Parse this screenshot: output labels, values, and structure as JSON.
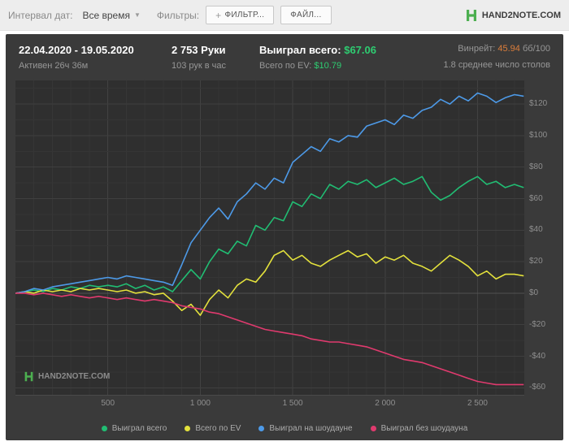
{
  "toolbar": {
    "date_interval_label": "Интервал дат:",
    "date_interval_value": "Все время",
    "filters_label": "Фильтры:",
    "add_filter_button": "ФИЛЬТР...",
    "file_button": "ФАЙЛ...",
    "brand": "HAND2NOTE.COM"
  },
  "header": {
    "date_range": "22.04.2020 - 19.05.2020",
    "active_time": "Активен 26ч 36м",
    "hands": "2 753 Руки",
    "hands_per_hour": "103 рук в час",
    "won_total_label": "Выиграл всего:",
    "won_total_value": "$67.06",
    "ev_label": "Всего по EV:",
    "ev_value": "$10.79",
    "winrate_label": "Винрейт:",
    "winrate_value": "45.94",
    "winrate_unit": "бб/100",
    "avg_tables": "1.8 среднее число столов"
  },
  "watermark": "HAND2NOTE.COM",
  "colors": {
    "accent": "#4caf50",
    "positive": "#2ecc71",
    "winrate": "#dd7e3b"
  },
  "chart_data": {
    "type": "line",
    "title": "",
    "xlabel": "",
    "ylabel": "",
    "grid": true,
    "legend_position": "bottom",
    "xlim": [
      0,
      2753
    ],
    "ylim": [
      -65,
      135
    ],
    "x_ticks": [
      {
        "v": 500,
        "label": "500"
      },
      {
        "v": 1000,
        "label": "1 000"
      },
      {
        "v": 1500,
        "label": "1 500"
      },
      {
        "v": 2000,
        "label": "2 000"
      },
      {
        "v": 2500,
        "label": "2 500"
      }
    ],
    "y_ticks": [
      {
        "v": 120,
        "label": "$120"
      },
      {
        "v": 100,
        "label": "$100"
      },
      {
        "v": 80,
        "label": "$80"
      },
      {
        "v": 60,
        "label": "$60"
      },
      {
        "v": 40,
        "label": "$40"
      },
      {
        "v": 20,
        "label": "$20"
      },
      {
        "v": 0,
        "label": "$0"
      },
      {
        "v": -20,
        "label": "-$20"
      },
      {
        "v": -40,
        "label": "-$40"
      },
      {
        "v": -60,
        "label": "-$60"
      }
    ],
    "x": [
      0,
      50,
      100,
      150,
      200,
      250,
      300,
      350,
      400,
      450,
      500,
      550,
      600,
      650,
      700,
      750,
      800,
      850,
      900,
      950,
      1000,
      1050,
      1100,
      1150,
      1200,
      1250,
      1300,
      1350,
      1400,
      1450,
      1500,
      1550,
      1600,
      1650,
      1700,
      1750,
      1800,
      1850,
      1900,
      1950,
      2000,
      2050,
      2100,
      2150,
      2200,
      2250,
      2300,
      2350,
      2400,
      2450,
      2500,
      2550,
      2600,
      2650,
      2700,
      2750
    ],
    "series": [
      {
        "name": "Выиграл всего",
        "color": "#21bd73",
        "values": [
          0,
          1,
          2,
          1,
          3,
          2,
          4,
          3,
          5,
          4,
          5,
          4,
          6,
          3,
          5,
          2,
          4,
          1,
          8,
          15,
          9,
          20,
          28,
          25,
          33,
          30,
          43,
          40,
          48,
          46,
          58,
          55,
          63,
          60,
          69,
          66,
          71,
          69,
          72,
          67,
          70,
          73,
          69,
          71,
          74,
          64,
          59,
          62,
          67,
          71,
          74,
          69,
          71,
          67,
          69,
          67
        ]
      },
      {
        "name": "Всего по EV",
        "color": "#e3e13c",
        "values": [
          0,
          1,
          0,
          2,
          1,
          2,
          1,
          3,
          2,
          3,
          2,
          1,
          2,
          0,
          1,
          -1,
          0,
          -5,
          -11,
          -7,
          -14,
          -4,
          2,
          -3,
          5,
          9,
          7,
          14,
          24,
          27,
          21,
          24,
          19,
          17,
          21,
          24,
          27,
          23,
          25,
          19,
          23,
          21,
          24,
          19,
          17,
          14,
          19,
          24,
          21,
          17,
          11,
          14,
          9,
          12,
          12,
          11
        ]
      },
      {
        "name": "Выиграл на шоудауне",
        "color": "#4d9ae8",
        "values": [
          0,
          1,
          3,
          2,
          4,
          5,
          6,
          7,
          8,
          9,
          10,
          9,
          11,
          10,
          9,
          8,
          7,
          5,
          18,
          32,
          40,
          48,
          54,
          47,
          58,
          63,
          70,
          66,
          73,
          70,
          83,
          88,
          93,
          90,
          98,
          96,
          100,
          99,
          106,
          108,
          110,
          107,
          113,
          111,
          116,
          118,
          123,
          120,
          125,
          122,
          127,
          125,
          121,
          124,
          126,
          125
        ]
      },
      {
        "name": "Выиграл без шоудауна",
        "color": "#e03a6e",
        "values": [
          0,
          0,
          -1,
          0,
          -1,
          -2,
          -1,
          -2,
          -3,
          -2,
          -3,
          -4,
          -3,
          -4,
          -5,
          -4,
          -5,
          -6,
          -8,
          -9,
          -10,
          -12,
          -13,
          -15,
          -17,
          -19,
          -21,
          -23,
          -24,
          -25,
          -26,
          -27,
          -29,
          -30,
          -31,
          -31,
          -32,
          -33,
          -34,
          -36,
          -38,
          -40,
          -42,
          -43,
          -44,
          -46,
          -48,
          -50,
          -52,
          -54,
          -56,
          -57,
          -58,
          -58,
          -58,
          -58
        ]
      }
    ]
  }
}
